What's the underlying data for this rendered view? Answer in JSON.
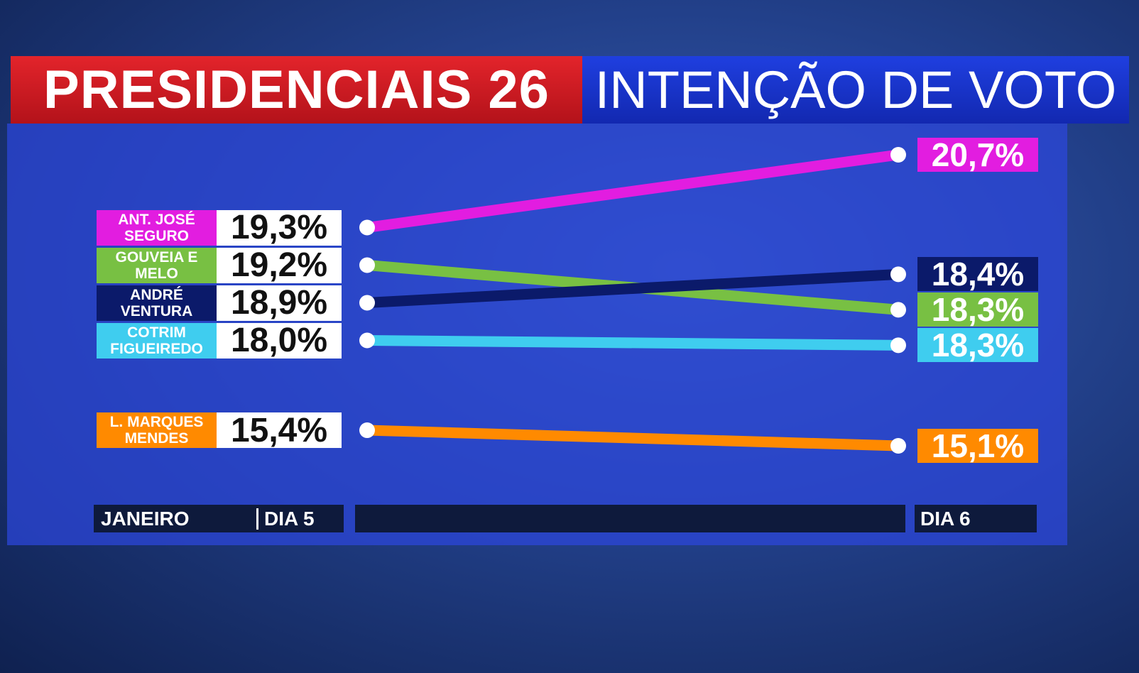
{
  "chart_data": {
    "type": "line",
    "title": "PRESIDENCIAIS 26",
    "subtitle": "INTENÇÃO DE VOTO",
    "period": "JANEIRO",
    "x": [
      "DIA 5",
      "DIA 6"
    ],
    "series": [
      {
        "name": "ANT. JOSÉ SEGURO",
        "color": "#e21de0",
        "text_color": "#ffffff",
        "values": [
          19.3,
          20.7
        ],
        "value_labels": [
          "19,3%",
          "20,7%"
        ]
      },
      {
        "name": "GOUVEIA E MELO",
        "color": "#78c043",
        "text_color": "#ffffff",
        "values": [
          19.2,
          18.3
        ],
        "value_labels": [
          "19,2%",
          "18,3%"
        ]
      },
      {
        "name": "ANDRÉ VENTURA",
        "color": "#0b1a6a",
        "text_color": "#ffffff",
        "values": [
          18.9,
          18.4
        ],
        "value_labels": [
          "18,9%",
          "18,4%"
        ]
      },
      {
        "name": "COTRIM FIGUEIREDO",
        "color": "#3fcdef",
        "text_color": "#ffffff",
        "values": [
          18.0,
          18.3
        ],
        "value_labels": [
          "18,0%",
          "18,3%"
        ]
      },
      {
        "name": "L. MARQUES MENDES",
        "color": "#ff8a00",
        "text_color": "#ffffff",
        "values": [
          15.4,
          15.1
        ],
        "value_labels": [
          "15,4%",
          "15,1%"
        ]
      }
    ]
  }
}
